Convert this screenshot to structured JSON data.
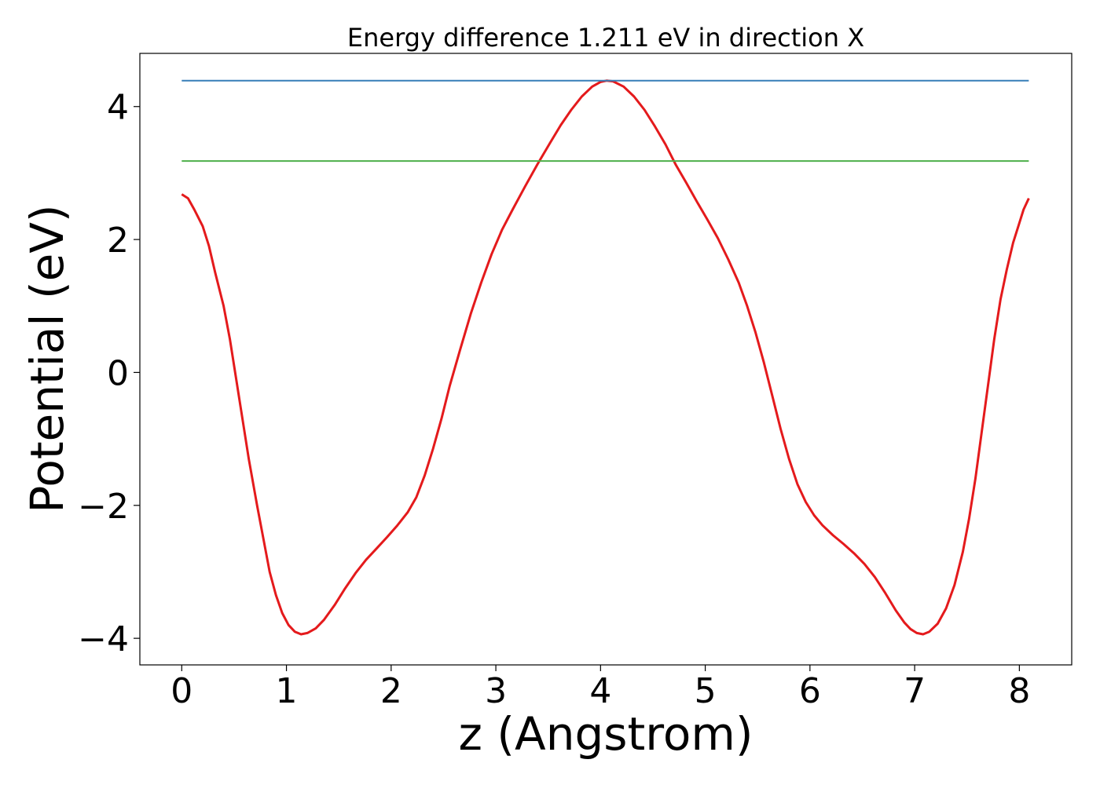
{
  "chart_data": {
    "type": "line",
    "title": "Energy difference 1.211 eV in direction X",
    "xlabel": "z (Angstrom)",
    "ylabel": "Potential (eV)",
    "xlim": [
      -0.4,
      8.5
    ],
    "ylim": [
      -4.4,
      4.8
    ],
    "grid": false,
    "x_ticks": [
      0,
      1,
      2,
      3,
      4,
      5,
      6,
      7,
      8
    ],
    "x_tick_labels": [
      "0",
      "1",
      "2",
      "3",
      "4",
      "5",
      "6",
      "7",
      "8"
    ],
    "y_ticks": [
      -4,
      -2,
      0,
      2,
      4
    ],
    "y_tick_labels": [
      "−4",
      "−2",
      "0",
      "2",
      "4"
    ],
    "series": [
      {
        "color": "#e41a1c",
        "style": "line",
        "points": [
          [
            0.0,
            2.68
          ],
          [
            0.06,
            2.62
          ],
          [
            0.12,
            2.45
          ],
          [
            0.2,
            2.2
          ],
          [
            0.26,
            1.9
          ],
          [
            0.32,
            1.5
          ],
          [
            0.4,
            1.0
          ],
          [
            0.46,
            0.5
          ],
          [
            0.52,
            -0.1
          ],
          [
            0.58,
            -0.7
          ],
          [
            0.64,
            -1.3
          ],
          [
            0.72,
            -2.0
          ],
          [
            0.78,
            -2.5
          ],
          [
            0.84,
            -3.0
          ],
          [
            0.9,
            -3.35
          ],
          [
            0.96,
            -3.62
          ],
          [
            1.02,
            -3.8
          ],
          [
            1.08,
            -3.9
          ],
          [
            1.14,
            -3.94
          ],
          [
            1.2,
            -3.92
          ],
          [
            1.28,
            -3.85
          ],
          [
            1.36,
            -3.72
          ],
          [
            1.46,
            -3.5
          ],
          [
            1.56,
            -3.25
          ],
          [
            1.66,
            -3.02
          ],
          [
            1.76,
            -2.82
          ],
          [
            1.86,
            -2.65
          ],
          [
            1.96,
            -2.48
          ],
          [
            2.06,
            -2.3
          ],
          [
            2.16,
            -2.1
          ],
          [
            2.24,
            -1.88
          ],
          [
            2.32,
            -1.55
          ],
          [
            2.4,
            -1.15
          ],
          [
            2.48,
            -0.7
          ],
          [
            2.56,
            -0.2
          ],
          [
            2.66,
            0.35
          ],
          [
            2.76,
            0.88
          ],
          [
            2.86,
            1.35
          ],
          [
            2.96,
            1.78
          ],
          [
            3.06,
            2.15
          ],
          [
            3.16,
            2.45
          ],
          [
            3.28,
            2.8
          ],
          [
            3.4,
            3.14
          ],
          [
            3.52,
            3.46
          ],
          [
            3.62,
            3.72
          ],
          [
            3.72,
            3.95
          ],
          [
            3.82,
            4.15
          ],
          [
            3.92,
            4.3
          ],
          [
            4.0,
            4.37
          ],
          [
            4.06,
            4.39
          ],
          [
            4.12,
            4.38
          ],
          [
            4.22,
            4.3
          ],
          [
            4.32,
            4.15
          ],
          [
            4.42,
            3.95
          ],
          [
            4.52,
            3.7
          ],
          [
            4.62,
            3.43
          ],
          [
            4.72,
            3.12
          ],
          [
            4.82,
            2.85
          ],
          [
            4.92,
            2.57
          ],
          [
            5.02,
            2.3
          ],
          [
            5.12,
            2.02
          ],
          [
            5.22,
            1.7
          ],
          [
            5.32,
            1.35
          ],
          [
            5.4,
            1.0
          ],
          [
            5.48,
            0.6
          ],
          [
            5.56,
            0.15
          ],
          [
            5.64,
            -0.35
          ],
          [
            5.72,
            -0.85
          ],
          [
            5.8,
            -1.3
          ],
          [
            5.88,
            -1.68
          ],
          [
            5.96,
            -1.95
          ],
          [
            6.04,
            -2.15
          ],
          [
            6.12,
            -2.3
          ],
          [
            6.22,
            -2.45
          ],
          [
            6.32,
            -2.58
          ],
          [
            6.42,
            -2.72
          ],
          [
            6.52,
            -2.88
          ],
          [
            6.62,
            -3.08
          ],
          [
            6.72,
            -3.32
          ],
          [
            6.82,
            -3.58
          ],
          [
            6.9,
            -3.76
          ],
          [
            6.96,
            -3.86
          ],
          [
            7.02,
            -3.92
          ],
          [
            7.08,
            -3.94
          ],
          [
            7.14,
            -3.9
          ],
          [
            7.22,
            -3.78
          ],
          [
            7.3,
            -3.55
          ],
          [
            7.38,
            -3.2
          ],
          [
            7.46,
            -2.7
          ],
          [
            7.52,
            -2.2
          ],
          [
            7.58,
            -1.6
          ],
          [
            7.64,
            -0.9
          ],
          [
            7.7,
            -0.2
          ],
          [
            7.76,
            0.5
          ],
          [
            7.82,
            1.1
          ],
          [
            7.88,
            1.55
          ],
          [
            7.94,
            1.95
          ],
          [
            8.0,
            2.25
          ],
          [
            8.04,
            2.45
          ],
          [
            8.09,
            2.62
          ]
        ]
      },
      {
        "color": "#377eb8",
        "style": "hline",
        "y": 4.39,
        "x_range": [
          0.0,
          8.09
        ]
      },
      {
        "color": "#4daf4a",
        "style": "hline",
        "y": 3.18,
        "x_range": [
          0.0,
          8.09
        ]
      }
    ]
  }
}
